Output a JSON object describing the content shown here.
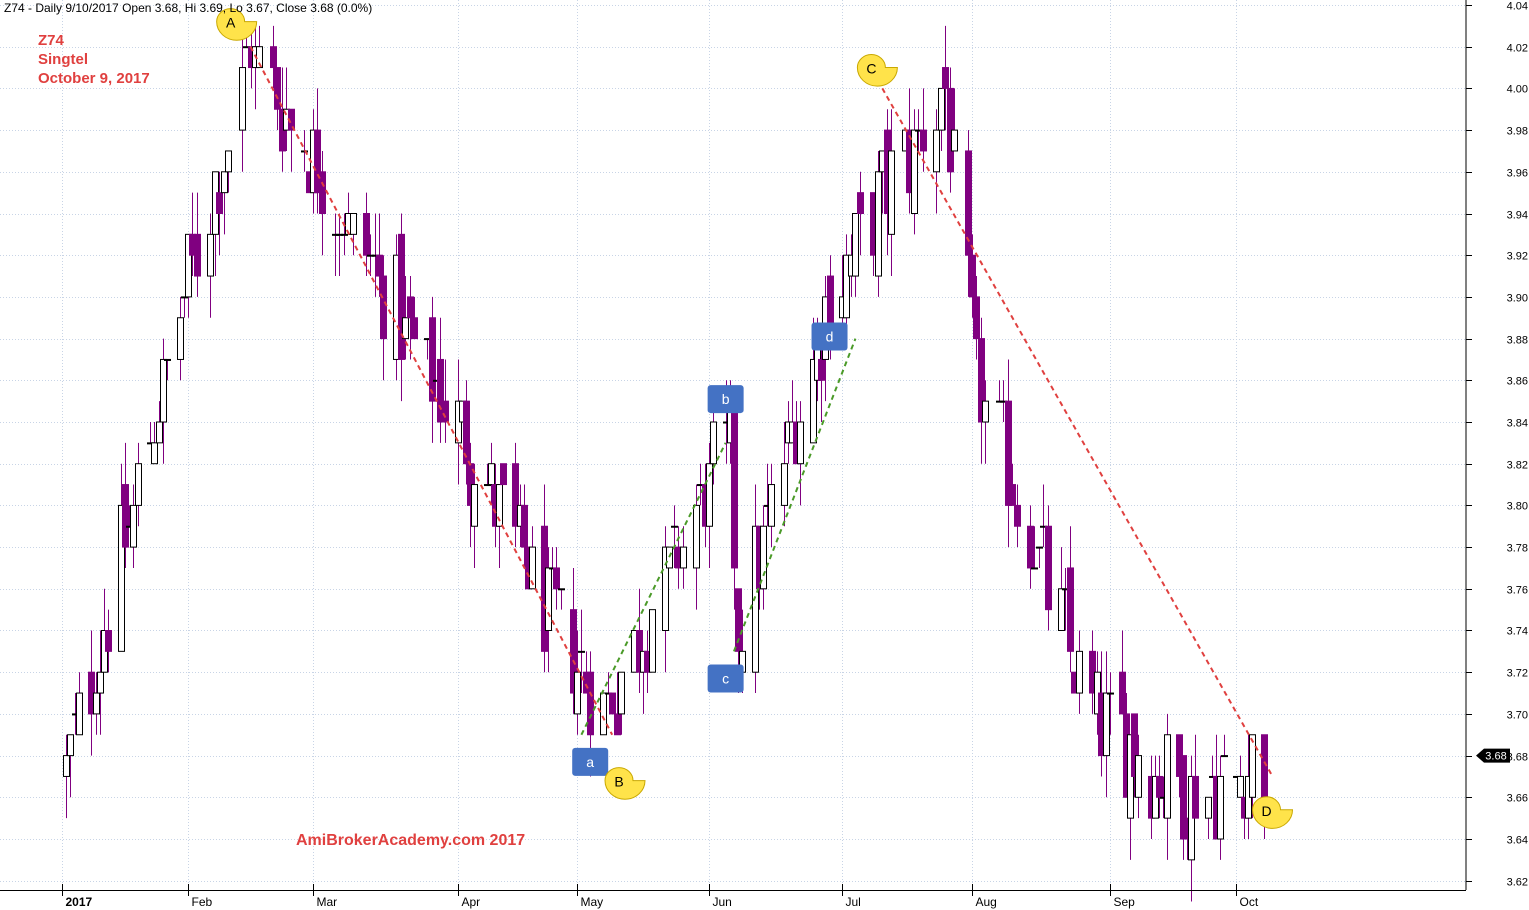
{
  "header": {
    "text": "Z74 - Daily 9/10/2017 Open 3.68, Hi 3.69, Lo 3.67, Close 3.68 (0.0%)"
  },
  "notes": {
    "ticker": "Z74",
    "name": "Singtel",
    "date": "October 9, 2017"
  },
  "watermark": "AmiBrokerAcademy.com  2017",
  "price_tag": "3.68",
  "chart_data": {
    "type": "candlestick",
    "title": "Z74 - Daily 9/10/2017 Open 3.68, Hi 3.69, Lo 3.67, Close 3.68 (0.0%)",
    "ylim": [
      3.61,
      4.04
    ],
    "y_ticks": [
      "3.62",
      "3.64",
      "3.66",
      "3.68",
      "3.70",
      "3.72",
      "3.74",
      "3.76",
      "3.78",
      "3.80",
      "3.82",
      "3.84",
      "3.86",
      "3.88",
      "3.90",
      "3.92",
      "3.94",
      "3.96",
      "3.98",
      "4.00",
      "4.02",
      "4.04"
    ],
    "x_ticks": [
      "2017",
      "Feb",
      "Mar",
      "Apr",
      "May",
      "Jun",
      "Jul",
      "Aug",
      "Sep",
      "Oct"
    ],
    "grid": true,
    "colors": {
      "up": "#ffffff",
      "down": "#800080",
      "wick": "#000000",
      "trend_down": "#e0403f",
      "trend_up": "#4a9a28",
      "wave_box": "#4472c4",
      "point_marker": "#ffe34a"
    },
    "last_close": 3.68,
    "anchors": [
      {
        "x": "2017-01-03",
        "price": 3.67
      },
      {
        "x": "2017-02-15",
        "price": 4.02
      },
      {
        "x": "2017-05-08",
        "price": 3.7
      },
      {
        "x": "2017-06-06",
        "price": 3.83
      },
      {
        "x": "2017-06-08",
        "price": 3.74
      },
      {
        "x": "2017-06-30",
        "price": 3.9
      },
      {
        "x": "2017-07-26",
        "price": 4.0
      },
      {
        "x": "2017-08-02",
        "price": 3.86
      },
      {
        "x": "2017-08-28",
        "price": 3.7
      },
      {
        "x": "2017-09-20",
        "price": 3.66
      },
      {
        "x": "2017-10-09",
        "price": 3.68
      }
    ],
    "trendlines": [
      {
        "from": {
          "x": "2017-02-15",
          "price": 4.02
        },
        "to": {
          "x": "2017-05-10",
          "price": 3.69
        },
        "style": "down"
      },
      {
        "from": {
          "x": "2017-07-12",
          "price": 4.0
        },
        "to": {
          "x": "2017-10-11",
          "price": 3.67
        },
        "style": "down"
      },
      {
        "from": {
          "x": "2017-05-03",
          "price": 3.69
        },
        "to": {
          "x": "2017-06-05",
          "price": 3.83
        },
        "style": "up"
      },
      {
        "from": {
          "x": "2017-06-07",
          "price": 3.73
        },
        "to": {
          "x": "2017-07-06",
          "price": 3.88
        },
        "style": "up"
      }
    ],
    "point_labels": [
      {
        "label": "A",
        "x": "2017-02-11",
        "price": 4.032
      },
      {
        "label": "B",
        "x": "2017-05-12",
        "price": 3.668
      },
      {
        "label": "C",
        "x": "2017-07-10",
        "price": 4.01
      },
      {
        "label": "D",
        "x": "2017-10-10",
        "price": 3.654
      }
    ],
    "wave_labels": [
      {
        "label": "a",
        "x": "2017-05-05",
        "price": 3.677
      },
      {
        "label": "b",
        "x": "2017-06-05",
        "price": 3.851
      },
      {
        "label": "c",
        "x": "2017-06-05",
        "price": 3.717
      },
      {
        "label": "d",
        "x": "2017-06-30",
        "price": 3.881
      }
    ]
  }
}
